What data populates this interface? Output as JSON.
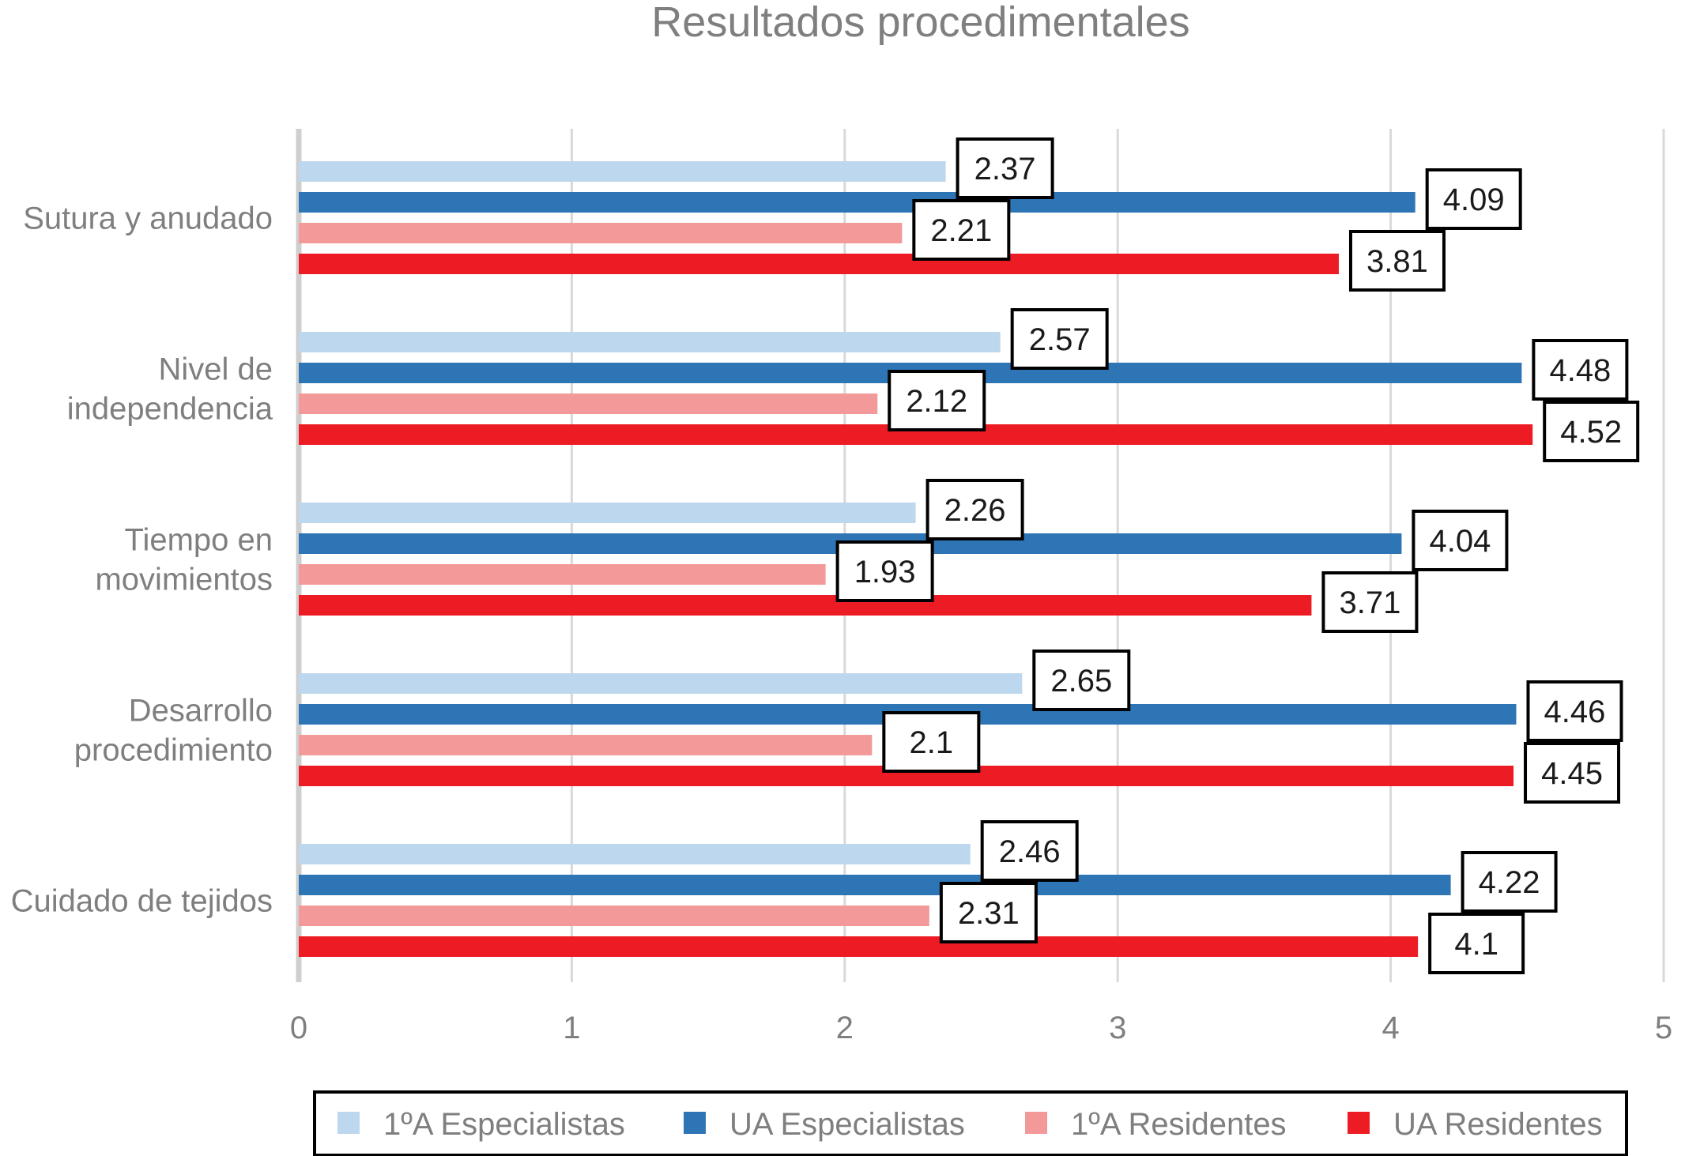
{
  "chart_data": {
    "type": "bar",
    "orientation": "horizontal",
    "title": "Resultados procedimentales",
    "categories": [
      [
        "Sutura y anudado"
      ],
      [
        "Nivel de",
        "independencia"
      ],
      [
        "Tiempo en",
        "movimientos"
      ],
      [
        "Desarrollo",
        "procedimiento"
      ],
      [
        "Cuidado de tejidos"
      ]
    ],
    "series": [
      {
        "name": "1ºA Especialistas",
        "color": "#bdd7ee",
        "values": [
          2.37,
          2.57,
          2.26,
          2.65,
          2.46
        ]
      },
      {
        "name": "UA Especialistas",
        "color": "#2e75b6",
        "values": [
          4.09,
          4.48,
          4.04,
          4.46,
          4.22
        ]
      },
      {
        "name": "1ºA Residentes",
        "color": "#f4999a",
        "values": [
          2.21,
          2.12,
          1.93,
          2.1,
          2.31
        ]
      },
      {
        "name": "UA Residentes",
        "color": "#ed1c24",
        "values": [
          3.81,
          4.52,
          3.71,
          4.45,
          4.1
        ]
      }
    ],
    "xlim": [
      0,
      5
    ],
    "xticks": [
      "0",
      "1",
      "2",
      "3",
      "4",
      "5"
    ],
    "grid": true,
    "legend": "bottom",
    "data_labels": true
  }
}
